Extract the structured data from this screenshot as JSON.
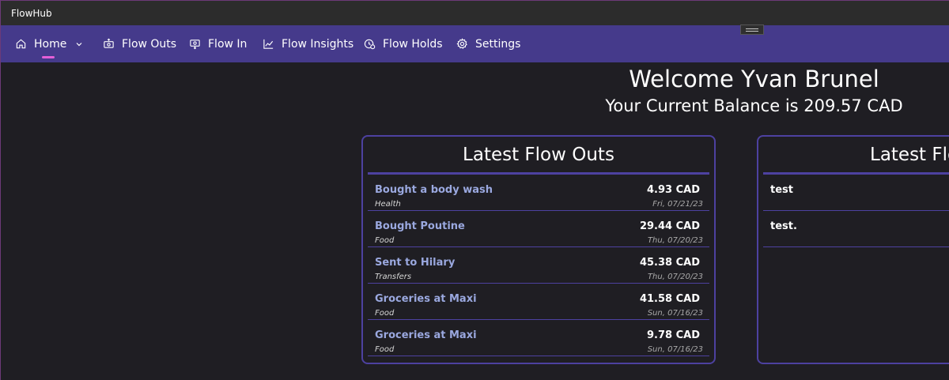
{
  "window": {
    "title": "FlowHub"
  },
  "nav": {
    "home": {
      "label": "Home",
      "icon": "home-icon"
    },
    "flow_outs": {
      "label": "Flow Outs",
      "icon": "money-out-icon"
    },
    "flow_in": {
      "label": "Flow In",
      "icon": "money-in-icon"
    },
    "flow_insights": {
      "label": "Flow Insights",
      "icon": "chart-icon"
    },
    "flow_holds": {
      "label": "Flow Holds",
      "icon": "clock-money-icon"
    },
    "settings": {
      "label": "Settings",
      "icon": "gear-icon"
    }
  },
  "header": {
    "welcome": "Welcome Yvan Brunel",
    "balance": "Your Current Balance is 209.57 CAD"
  },
  "flow_outs_card": {
    "title": "Latest Flow Outs",
    "items": [
      {
        "title": "Bought a body wash",
        "category": "Health",
        "amount": "4.93 CAD",
        "date": "Fri, 07/21/23"
      },
      {
        "title": "Bought Poutine",
        "category": "Food",
        "amount": "29.44 CAD",
        "date": "Thu, 07/20/23"
      },
      {
        "title": "Sent to Hilary",
        "category": "Transfers",
        "amount": "45.38 CAD",
        "date": "Thu, 07/20/23"
      },
      {
        "title": "Groceries at Maxi",
        "category": "Food",
        "amount": "41.58 CAD",
        "date": "Sun, 07/16/23"
      },
      {
        "title": "Groceries at Maxi",
        "category": "Food",
        "amount": "9.78 CAD",
        "date": "Sun, 07/16/23"
      }
    ]
  },
  "flow_ins_card": {
    "title": "Latest Flo",
    "items": [
      {
        "title": "test"
      },
      {
        "title": "test."
      }
    ]
  },
  "colors": {
    "titlebar": "#2c2c2c",
    "navbar": "#453a8b",
    "accent_indicator": "#e45fd7",
    "card_border": "#4d41a0",
    "item_title": "#9aa8df",
    "background": "#1f1e23"
  }
}
